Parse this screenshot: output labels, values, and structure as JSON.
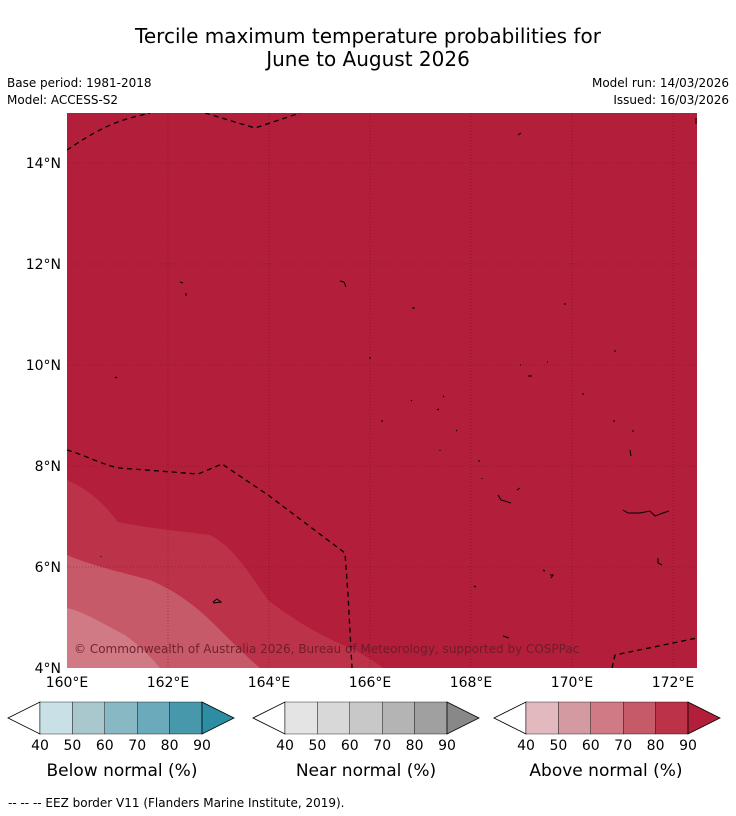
{
  "header": {
    "title_line1": "Tercile maximum temperature probabilities for",
    "title_line2": "June to August 2026",
    "base_period": "Base period: 1981-2018",
    "model": "Model: ACCESS-S2",
    "model_run": "Model run: 14/03/2026",
    "issued": "Issued: 16/03/2026"
  },
  "map": {
    "lon_range": [
      160,
      172.5
    ],
    "lat_range": [
      4,
      15
    ],
    "lon_ticks": [
      "160°E",
      "162°E",
      "164°E",
      "166°E",
      "168°E",
      "170°E",
      "172°E"
    ],
    "lat_ticks": [
      "4°N",
      "6°N",
      "8°N",
      "10°N",
      "12°N",
      "14°N"
    ],
    "background_color": "#b31e3a",
    "copyright": "© Commonwealth of Australia 2026, Bureau of Meteorology, supported by COSPPac"
  },
  "colorbars": [
    {
      "label": "Below normal (%)",
      "ticks": [
        "40",
        "50",
        "60",
        "70",
        "80",
        "90"
      ],
      "colors": [
        "#ffffff",
        "#c8e0e6",
        "#a8c8ce",
        "#88b8c4",
        "#6aaabb",
        "#4898ab",
        "#2d8ea3"
      ]
    },
    {
      "label": "Near normal (%)",
      "ticks": [
        "40",
        "50",
        "60",
        "70",
        "80",
        "90"
      ],
      "colors": [
        "#ffffff",
        "#e4e4e4",
        "#d8d8d8",
        "#c8c8c8",
        "#b4b4b4",
        "#a0a0a0",
        "#888888"
      ]
    },
    {
      "label": "Above normal (%)",
      "ticks": [
        "40",
        "50",
        "60",
        "70",
        "80",
        "90"
      ],
      "colors": [
        "#ffffff",
        "#e2b9bf",
        "#d49aa2",
        "#cf7a84",
        "#c65a68",
        "#bc3249",
        "#b31e3a"
      ]
    }
  ],
  "footnote": "--  --  -- EEZ border V11 (Flanders Marine Institute, 2019)."
}
